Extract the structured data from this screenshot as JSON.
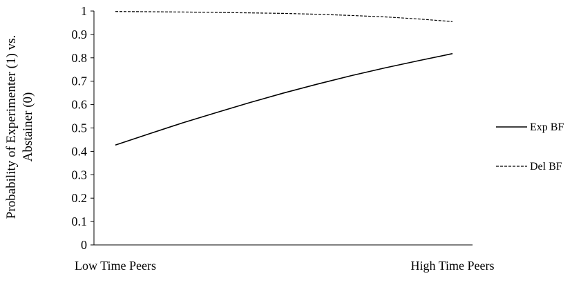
{
  "chart_data": {
    "type": "line",
    "title": "",
    "xlabel": "",
    "ylabel_lines": [
      "Probability of Experimenter (1) vs.",
      "Abstainer (0)"
    ],
    "categories": [
      "Low Time Peers",
      "High Time Peers"
    ],
    "ylim": [
      0,
      1
    ],
    "yticks": [
      "0",
      "0.1",
      "0.2",
      "0.3",
      "0.4",
      "0.5",
      "0.6",
      "0.7",
      "0.8",
      "0.9",
      "1"
    ],
    "grid": false,
    "legend_position": "right",
    "series": [
      {
        "name": "Exp BF",
        "style": "solid",
        "color": "#000000",
        "x": [
          0,
          0.1,
          0.2,
          0.3,
          0.4,
          0.5,
          0.6,
          0.7,
          0.8,
          0.9,
          1
        ],
        "values": [
          0.427,
          0.475,
          0.522,
          0.566,
          0.609,
          0.65,
          0.688,
          0.724,
          0.757,
          0.788,
          0.818
        ]
      },
      {
        "name": "Del BF",
        "style": "dashed",
        "color": "#000000",
        "x": [
          0,
          0.1,
          0.2,
          0.3,
          0.4,
          0.5,
          0.6,
          0.7,
          0.8,
          0.9,
          1
        ],
        "values": [
          0.998,
          0.997,
          0.996,
          0.994,
          0.992,
          0.99,
          0.986,
          0.981,
          0.975,
          0.966,
          0.955
        ]
      }
    ]
  }
}
